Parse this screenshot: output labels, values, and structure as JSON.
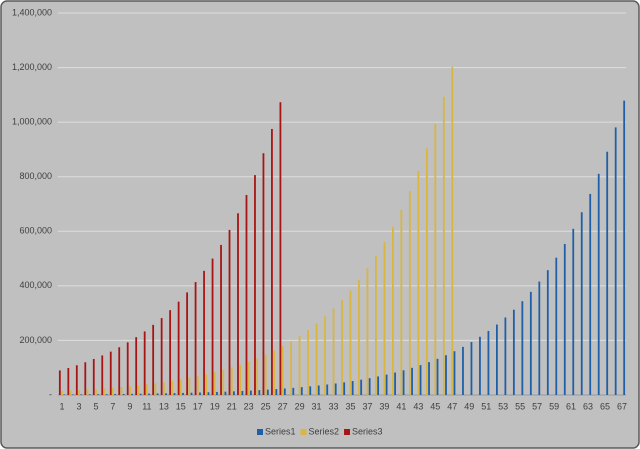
{
  "chart_data": {
    "type": "bar",
    "categories": [
      1,
      null,
      3,
      null,
      5,
      null,
      7,
      null,
      9,
      null,
      11,
      null,
      13,
      null,
      15,
      null,
      17,
      null,
      19,
      null,
      21,
      null,
      23,
      null,
      25,
      null,
      27,
      null,
      29,
      null,
      31,
      null,
      33,
      null,
      35,
      null,
      37,
      null,
      39,
      null,
      41,
      null,
      43,
      null,
      45,
      null,
      47,
      null,
      49,
      null,
      51,
      null,
      53,
      null,
      55,
      null,
      57,
      null,
      59,
      null,
      61,
      null,
      63,
      null,
      65,
      null,
      67
    ],
    "series": [
      {
        "name": "Series1",
        "color": "#1f5fa8",
        "values": [
          2000,
          2200,
          2420,
          2662,
          2928,
          3221,
          3543,
          3897,
          4287,
          4716,
          5187,
          5706,
          6277,
          6905,
          7595,
          8354,
          9190,
          10109,
          11120,
          12232,
          13455,
          14800,
          16281,
          17909,
          19699,
          21669,
          23836,
          26220,
          28842,
          31726,
          34898,
          38388,
          42228,
          46450,
          51096,
          56204,
          61826,
          68008,
          74808,
          82290,
          90518,
          99570,
          109528,
          120480,
          132528,
          145780,
          160360,
          176394,
          194034,
          213440,
          234780,
          258260,
          284080,
          312500,
          343740,
          378120,
          415940,
          457520,
          503280,
          553600,
          608960,
          669860,
          736840,
          810540,
          891580,
          980740,
          1078820
        ]
      },
      {
        "name": "Series2",
        "color": "#d9b640",
        "values": [
          15000,
          16500,
          18000,
          20000,
          22000,
          24000,
          27000,
          29000,
          32000,
          35000,
          39000,
          43000,
          47000,
          52000,
          57000,
          63000,
          69000,
          76000,
          83000,
          92000,
          101000,
          111000,
          122000,
          134000,
          148000,
          163000,
          179000,
          197000,
          216000,
          238000,
          262000,
          288000,
          317000,
          348000,
          383000,
          422000,
          464000,
          510000,
          561000,
          617000,
          679000,
          747000,
          821000,
          904000,
          994000,
          1093000,
          1203000,
          null,
          null,
          null,
          null,
          null,
          null,
          null,
          null,
          null,
          null,
          null,
          null,
          null,
          null,
          null,
          null,
          null,
          null,
          null,
          null
        ]
      },
      {
        "name": "Series3",
        "color": "#a81414",
        "values": [
          90000,
          99000,
          109000,
          120000,
          132000,
          145000,
          159000,
          175000,
          193000,
          212000,
          233000,
          257000,
          282000,
          311000,
          342000,
          376000,
          414000,
          455000,
          500000,
          550000,
          605000,
          666000,
          733000,
          806000,
          886000,
          975000,
          1073000,
          null,
          null,
          null,
          null,
          null,
          null,
          null,
          null,
          null,
          null,
          null,
          null,
          null,
          null,
          null,
          null,
          null,
          null,
          null,
          null,
          null,
          null,
          null,
          null,
          null,
          null,
          null,
          null,
          null,
          null,
          null,
          null,
          null,
          null,
          null,
          null,
          null,
          null,
          null,
          null
        ]
      }
    ],
    "ylim": [
      0,
      1400000
    ],
    "yticks": [
      {
        "value": 0,
        "label": "-"
      },
      {
        "value": 200000,
        "label": "200,000"
      },
      {
        "value": 400000,
        "label": "400,000"
      },
      {
        "value": 600000,
        "label": "600,000"
      },
      {
        "value": 800000,
        "label": "800,000"
      },
      {
        "value": 1000000,
        "label": "1,000,000"
      },
      {
        "value": 1200000,
        "label": "1,200,000"
      },
      {
        "value": 1400000,
        "label": "1,400,000"
      }
    ],
    "grid": true,
    "legend": "bottom"
  }
}
